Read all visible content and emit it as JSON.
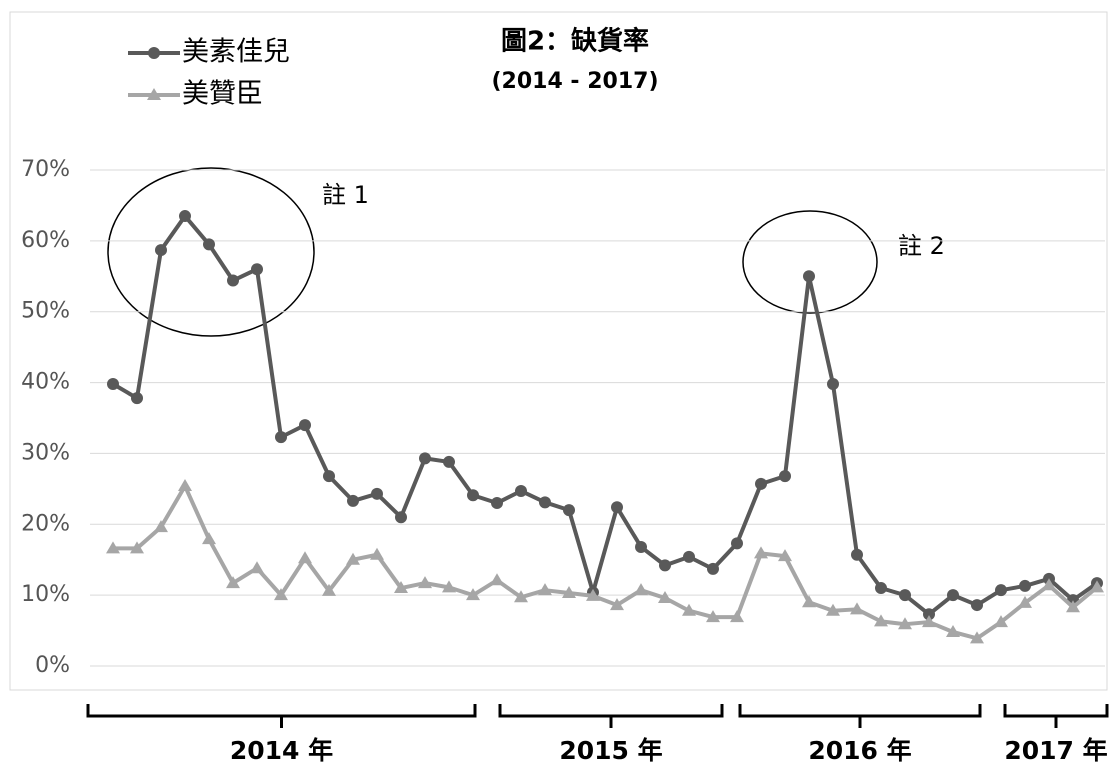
{
  "chart_data": {
    "type": "line",
    "title": "圖2：缺貨率",
    "subtitle": "(2014 - 2017)",
    "categories": [
      null,
      null,
      null,
      null,
      null,
      null,
      null,
      null,
      null,
      null,
      null,
      null,
      null,
      null,
      null,
      null,
      null,
      null,
      null,
      null,
      null,
      null,
      null,
      null,
      null,
      null,
      null,
      null,
      null,
      null,
      null,
      null,
      null,
      null,
      null,
      null,
      null,
      null,
      null,
      null,
      null,
      null
    ],
    "series": [
      {
        "name": "美素佳兒",
        "color": "#595959",
        "marker": "circle",
        "values": [
          39.8,
          37.8,
          58.7,
          63.5,
          59.5,
          54.4,
          56.0,
          32.3,
          34.0,
          26.8,
          23.3,
          24.3,
          21.0,
          29.3,
          28.8,
          24.1,
          23.0,
          24.7,
          23.1,
          22.0,
          10.4,
          22.4,
          16.8,
          14.2,
          15.4,
          13.7,
          17.3,
          25.7,
          26.8,
          55.0,
          39.8,
          15.7,
          11.0,
          10.0,
          7.3,
          10.0,
          8.6,
          10.7,
          11.3,
          12.3,
          9.3,
          11.7
        ]
      },
      {
        "name": "美贊臣",
        "color": "#a6a6a6",
        "marker": "triangle",
        "values": [
          16.6,
          16.6,
          19.6,
          25.4,
          17.9,
          11.7,
          13.8,
          10.0,
          15.2,
          10.6,
          15.0,
          15.7,
          11.0,
          11.7,
          11.1,
          10.0,
          12.1,
          9.7,
          10.7,
          10.3,
          9.9,
          8.6,
          10.7,
          9.6,
          7.8,
          6.9,
          6.9,
          15.9,
          15.5,
          9.0,
          7.8,
          8.0,
          6.3,
          5.9,
          6.2,
          4.8,
          3.9,
          6.2,
          8.9,
          11.4,
          8.3,
          11.1
        ]
      }
    ],
    "ylim": [
      0,
      70
    ],
    "yticks": [
      {
        "value": 0,
        "label": "0%"
      },
      {
        "value": 10,
        "label": "10%"
      },
      {
        "value": 20,
        "label": "20%"
      },
      {
        "value": 30,
        "label": "30%"
      },
      {
        "value": 40,
        "label": "40%"
      },
      {
        "value": 50,
        "label": "50%"
      },
      {
        "value": 60,
        "label": "60%"
      },
      {
        "value": 70,
        "label": "70%"
      }
    ],
    "grid": true,
    "legend": "top-left",
    "annotations": [
      "註 1",
      "註 2"
    ],
    "year_groups": [
      "2014 年",
      "2015 年",
      "2016 年",
      "2017 年"
    ]
  }
}
